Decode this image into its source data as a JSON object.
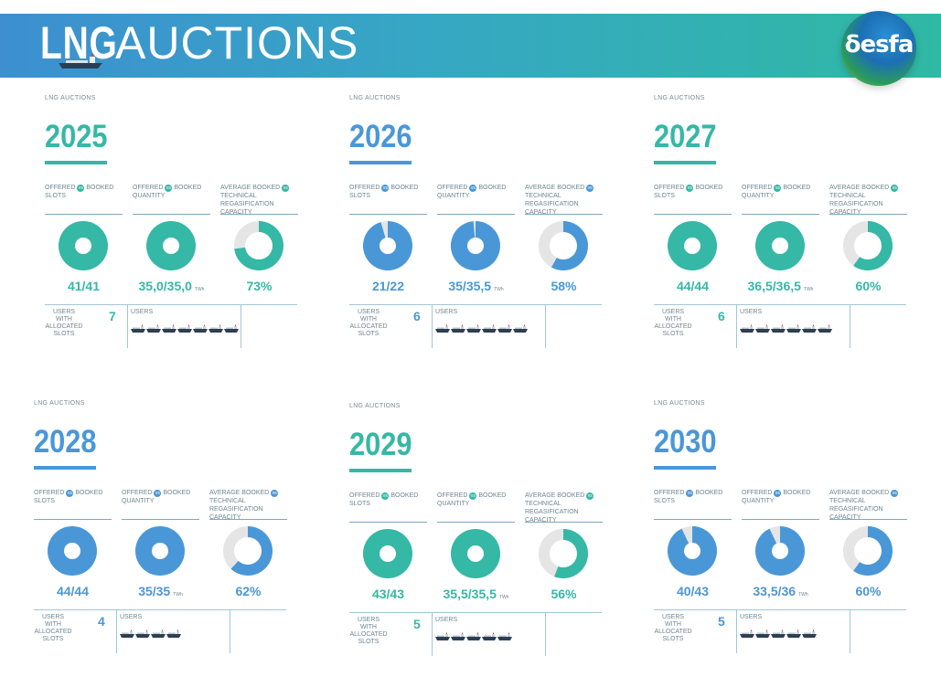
{
  "header": {
    "title_bold": "LNG",
    "title_rest": "AUCTIONS",
    "logo_text": "δesfa"
  },
  "colors": {
    "teal": "#35b8a5",
    "blue": "#4a97d8",
    "grey": "#e5e5e5",
    "text": "#6e8690"
  },
  "labels": {
    "kicker": "LNG AUCTIONS",
    "offered": "OFFERED",
    "booked_slots": "BOOKED SLOTS",
    "booked_quantity": "BOOKED QUANTITY",
    "vs": "vs",
    "average_booked": "AVERAGE BOOKED",
    "technical_capacity": "TECHNICAL REGASIFICATION CAPACITY",
    "twh": "TWh",
    "users_with_slots": "USERS WITH ALLOCATED SLOTS",
    "users": "USERS"
  },
  "panels": [
    {
      "year": "2025",
      "color": "teal",
      "slots": "41/41",
      "slots_fill": 1.0,
      "quantity": "35,0/35,0",
      "quantity_fill": 1.0,
      "capacity": "73%",
      "capacity_fill": 0.73,
      "users": "7",
      "ships": 7
    },
    {
      "year": "2026",
      "color": "blue",
      "slots": "21/22",
      "slots_fill": 0.955,
      "quantity": "35/35,5",
      "quantity_fill": 0.986,
      "capacity": "58%",
      "capacity_fill": 0.58,
      "users": "6",
      "ships": 6
    },
    {
      "year": "2027",
      "color": "teal",
      "slots": "44/44",
      "slots_fill": 1.0,
      "quantity": "36,5/36,5",
      "quantity_fill": 1.0,
      "capacity": "60%",
      "capacity_fill": 0.6,
      "users": "6",
      "ships": 6
    },
    {
      "year": "2028",
      "color": "blue",
      "slots": "44/44",
      "slots_fill": 1.0,
      "quantity": "35/35",
      "quantity_fill": 1.0,
      "capacity": "62%",
      "capacity_fill": 0.62,
      "users": "4",
      "ships": 4
    },
    {
      "year": "2029",
      "color": "teal",
      "slots": "43/43",
      "slots_fill": 1.0,
      "quantity": "35,5/35,5",
      "quantity_fill": 1.0,
      "capacity": "56%",
      "capacity_fill": 0.56,
      "users": "5",
      "ships": 5
    },
    {
      "year": "2030",
      "color": "blue",
      "slots": "40/43",
      "slots_fill": 0.93,
      "quantity": "33,5/36",
      "quantity_fill": 0.93,
      "capacity": "60%",
      "capacity_fill": 0.6,
      "users": "5",
      "ships": 5
    }
  ]
}
